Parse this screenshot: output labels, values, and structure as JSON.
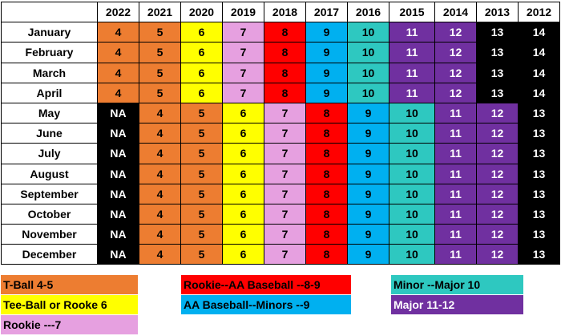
{
  "header": {
    "years": [
      "2022",
      "2021",
      "2020",
      "2019",
      "2018",
      "2017",
      "2016",
      "2015",
      "2014",
      "2013",
      "2012"
    ]
  },
  "colors": {
    "4": "#ed7d31",
    "5": "#ed7d31",
    "6": "#ffff00",
    "7": "#e6a0e0",
    "8": "#ff0000",
    "9": "#00b0f0",
    "10": "#2ec8c0",
    "11": "#7030a0",
    "12": "#7030a0",
    "13": "#000000",
    "14": "#000000",
    "NA": "#000000"
  },
  "rows": [
    {
      "month": "January",
      "values": [
        "4",
        "5",
        "6",
        "7",
        "8",
        "9",
        "10",
        "11",
        "12",
        "13",
        "14"
      ]
    },
    {
      "month": "February",
      "values": [
        "4",
        "5",
        "6",
        "7",
        "8",
        "9",
        "10",
        "11",
        "12",
        "13",
        "14"
      ]
    },
    {
      "month": "March",
      "values": [
        "4",
        "5",
        "6",
        "7",
        "8",
        "9",
        "10",
        "11",
        "12",
        "13",
        "14"
      ]
    },
    {
      "month": "April",
      "values": [
        "4",
        "5",
        "6",
        "7",
        "8",
        "9",
        "10",
        "11",
        "12",
        "13",
        "14"
      ]
    },
    {
      "month": "May",
      "values": [
        "NA",
        "4",
        "5",
        "6",
        "7",
        "8",
        "9",
        "10",
        "11",
        "12",
        "13"
      ]
    },
    {
      "month": "June",
      "values": [
        "NA",
        "4",
        "5",
        "6",
        "7",
        "8",
        "9",
        "10",
        "11",
        "12",
        "13"
      ]
    },
    {
      "month": "July",
      "values": [
        "NA",
        "4",
        "5",
        "6",
        "7",
        "8",
        "9",
        "10",
        "11",
        "12",
        "13"
      ]
    },
    {
      "month": "August",
      "values": [
        "NA",
        "4",
        "5",
        "6",
        "7",
        "8",
        "9",
        "10",
        "11",
        "12",
        "13"
      ]
    },
    {
      "month": "September",
      "values": [
        "NA",
        "4",
        "5",
        "6",
        "7",
        "8",
        "9",
        "10",
        "11",
        "12",
        "13"
      ]
    },
    {
      "month": "October",
      "values": [
        "NA",
        "4",
        "5",
        "6",
        "7",
        "8",
        "9",
        "10",
        "11",
        "12",
        "13"
      ]
    },
    {
      "month": "November",
      "values": [
        "NA",
        "4",
        "5",
        "6",
        "7",
        "8",
        "9",
        "10",
        "11",
        "12",
        "13"
      ]
    },
    {
      "month": "December",
      "values": [
        "NA",
        "4",
        "5",
        "6",
        "7",
        "8",
        "9",
        "10",
        "11",
        "12",
        "13"
      ]
    }
  ],
  "legend": {
    "tball": {
      "label": "T-Ball 4-5",
      "color": "#ed7d31"
    },
    "teeball_rookie": {
      "label": "Tee-Ball or Rooke  6",
      "color": "#ffff00"
    },
    "rookie": {
      "label": "Rookie ---7",
      "color": "#e6a0e0"
    },
    "rookie_aa": {
      "label": "Rookie--AA Baseball --8-9",
      "color": "#ff0000"
    },
    "aa_minors": {
      "label": "AA Baseball--Minors --9",
      "color": "#00b0f0"
    },
    "minor_major": {
      "label": "Minor --Major 10",
      "color": "#2ec8c0"
    },
    "major": {
      "label": "Major 11-12",
      "color": "#7030a0"
    }
  }
}
